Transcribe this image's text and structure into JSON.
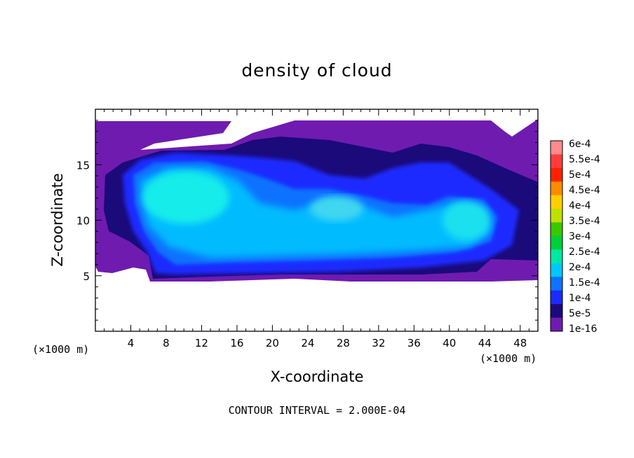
{
  "chart_data": {
    "type": "heatmap",
    "title": "density of cloud",
    "xlabel": "X-coordinate",
    "ylabel": "Z-coordinate",
    "x_unit": "(×1000 m)",
    "y_unit": "(×1000 m)",
    "xlim": [
      0,
      50
    ],
    "ylim": [
      0,
      20
    ],
    "xticks": [
      4,
      8,
      12,
      16,
      20,
      24,
      28,
      32,
      36,
      40,
      44,
      48
    ],
    "yticks": [
      5,
      10,
      15
    ],
    "colorbar": {
      "labels": [
        "6e-4",
        "5.5e-4",
        "5e-4",
        "4.5e-4",
        "4e-4",
        "3.5e-4",
        "3e-4",
        "2.5e-4",
        "2e-4",
        "1.5e-4",
        "1e-4",
        "5e-5",
        "1e-16"
      ],
      "colors": [
        "#ff8a8a",
        "#ff3c3c",
        "#ff2200",
        "#ff8a00",
        "#ffd000",
        "#bfe000",
        "#38c800",
        "#00cf3a",
        "#00e8a0",
        "#00c8ff",
        "#0f72ff",
        "#1a2bff",
        "#1b0a7a",
        "#6f1bb0"
      ]
    },
    "footer": "CONTOUR INTERVAL = 2.000E-04"
  }
}
